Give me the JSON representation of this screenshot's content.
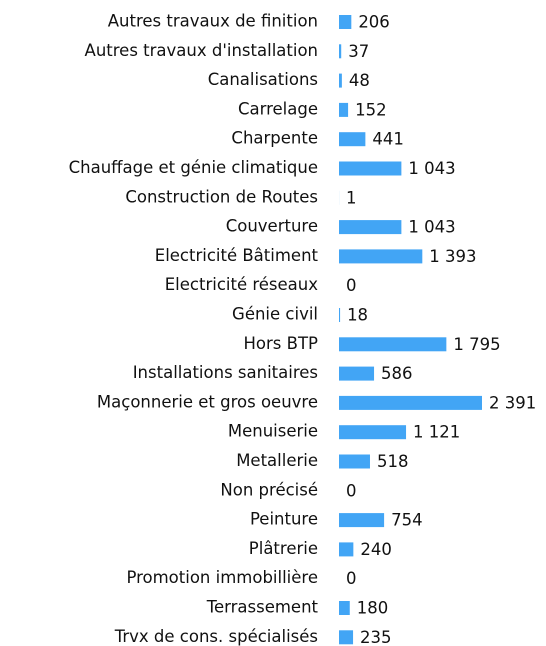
{
  "chart_data": {
    "type": "bar",
    "orientation": "horizontal",
    "color": "#42a5f5",
    "categories": [
      "Autres travaux de finition",
      "Autres travaux d'installation",
      "Canalisations",
      "Carrelage",
      "Charpente",
      "Chauffage et génie climatique",
      "Construction de Routes",
      "Couverture",
      "Electricité Bâtiment",
      "Electricité réseaux",
      "Génie civil",
      "Hors BTP",
      "Installations sanitaires",
      "Maçonnerie et gros oeuvre",
      "Menuiserie",
      "Metallerie",
      "Non précisé",
      "Peinture",
      "Plâtrerie",
      "Promotion immobillière",
      "Terrassement",
      "Trvx de cons. spécialisés"
    ],
    "values": [
      206,
      37,
      48,
      152,
      441,
      1043,
      1,
      1043,
      1393,
      0,
      18,
      1795,
      586,
      2391,
      1121,
      518,
      0,
      754,
      240,
      0,
      180,
      235
    ],
    "value_labels": [
      "206",
      "37",
      "48",
      "152",
      "441",
      "1 043",
      "1",
      "1 043",
      "1 393",
      "0",
      "18",
      "1 795",
      "586",
      "2 391",
      "1 121",
      "518",
      "0",
      "754",
      "240",
      "0",
      "180",
      "235"
    ]
  }
}
